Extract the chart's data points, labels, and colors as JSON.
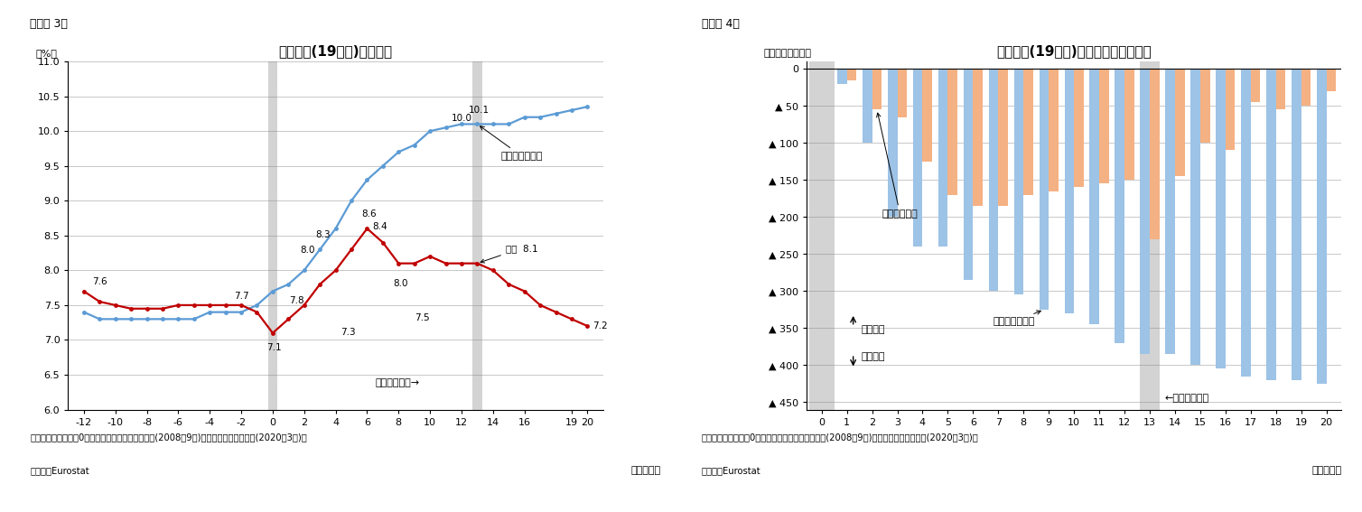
{
  "fig3_title": "ユーロ圏(19か国)の失業率",
  "fig3_label": "（図表 3）",
  "fig3_ylabel": "（%）",
  "fig3_xlabel": "（経過月）",
  "fig3_note1": "（注）季節調整値、0は「リーマンブラザーズ破綻(2008年9月)」、「コロナショック(2020年3月)」",
  "fig3_note2": "（資料）Eurostat",
  "fig3_xlim": [
    -13,
    21
  ],
  "fig3_ylim": [
    6.0,
    11.0
  ],
  "fig3_yticks": [
    6.0,
    6.5,
    7.0,
    7.5,
    8.0,
    8.5,
    9.0,
    9.5,
    10.0,
    10.5,
    11.0
  ],
  "fig3_xticks": [
    -12,
    -10,
    -8,
    -6,
    -4,
    -2,
    0,
    2,
    4,
    6,
    8,
    10,
    12,
    14,
    16,
    19,
    20
  ],
  "fig3_blue_x": [
    -12,
    -11,
    -10,
    -9,
    -8,
    -7,
    -6,
    -5,
    -4,
    -3,
    -2,
    -1,
    0,
    1,
    2,
    3,
    4,
    5,
    6,
    7,
    8,
    9,
    10,
    11,
    12,
    13,
    14,
    15,
    16,
    17,
    18,
    19,
    20
  ],
  "fig3_blue_y": [
    7.4,
    7.3,
    7.3,
    7.3,
    7.3,
    7.3,
    7.3,
    7.3,
    7.4,
    7.4,
    7.4,
    7.5,
    7.7,
    7.8,
    8.0,
    8.3,
    8.6,
    9.0,
    9.3,
    9.5,
    9.7,
    9.8,
    10.0,
    10.05,
    10.1,
    10.1,
    10.1,
    10.1,
    10.2,
    10.2,
    10.25,
    10.3,
    10.35
  ],
  "fig3_red_x": [
    -12,
    -11,
    -10,
    -9,
    -8,
    -7,
    -6,
    -5,
    -4,
    -3,
    -2,
    -1,
    0,
    1,
    2,
    3,
    4,
    5,
    6,
    7,
    8,
    9,
    10,
    11,
    12,
    13,
    14,
    15,
    16,
    17,
    18,
    19,
    20
  ],
  "fig3_red_y": [
    7.7,
    7.55,
    7.5,
    7.45,
    7.45,
    7.45,
    7.5,
    7.5,
    7.5,
    7.5,
    7.5,
    7.4,
    7.1,
    7.3,
    7.5,
    7.8,
    8.0,
    8.3,
    8.6,
    8.4,
    8.1,
    8.1,
    8.2,
    8.1,
    8.1,
    8.1,
    8.0,
    7.8,
    7.7,
    7.5,
    7.4,
    7.3,
    7.2
  ],
  "fig3_blue_color": "#5B9BD5",
  "fig3_red_color": "#C00000",
  "fig4_title": "ユーロ圏(19か国)の累積失業者数変化",
  "fig4_label": "（図表 4）",
  "fig4_ylabel": "（基準差、万人）",
  "fig4_xlabel": "（経過月）",
  "fig4_note1": "（注）季節調整値、0は「リーマンブラザーズ破綻(2008年9月)」、「コロナショック(2020年3月)」",
  "fig4_note2": "（資料）Eurostat",
  "fig4_xlim": [
    -0.6,
    20.6
  ],
  "fig4_ylim": [
    -460,
    10
  ],
  "fig4_yticks": [
    0,
    -50,
    -100,
    -150,
    -200,
    -250,
    -300,
    -350,
    -400,
    -450
  ],
  "fig4_xticks": [
    0,
    1,
    2,
    3,
    4,
    5,
    6,
    7,
    8,
    9,
    10,
    11,
    12,
    13,
    14,
    15,
    16,
    17,
    18,
    19,
    20
  ],
  "fig4_blue_x": [
    1,
    2,
    3,
    4,
    5,
    6,
    7,
    8,
    9,
    10,
    11,
    12,
    13,
    14,
    15,
    16,
    17,
    18,
    19,
    20
  ],
  "fig4_blue_y": [
    -20,
    -100,
    -200,
    -240,
    -240,
    -285,
    -300,
    -305,
    -325,
    -330,
    -345,
    -370,
    -385,
    -385,
    -400,
    -405,
    -415,
    -420,
    -420,
    -425
  ],
  "fig4_orange_x": [
    1,
    2,
    3,
    4,
    5,
    6,
    7,
    8,
    9,
    10,
    11,
    12,
    13,
    14,
    15,
    16,
    17,
    18,
    19,
    20
  ],
  "fig4_orange_y": [
    -15,
    -55,
    -65,
    -125,
    -170,
    -185,
    -185,
    -170,
    -165,
    -160,
    -155,
    -150,
    -230,
    -145,
    -100,
    -110,
    -45,
    -55,
    -50,
    -30
  ],
  "fig4_blue_color": "#9DC3E6",
  "fig4_orange_color": "#F4B183",
  "background_color": "#FFFFFF"
}
